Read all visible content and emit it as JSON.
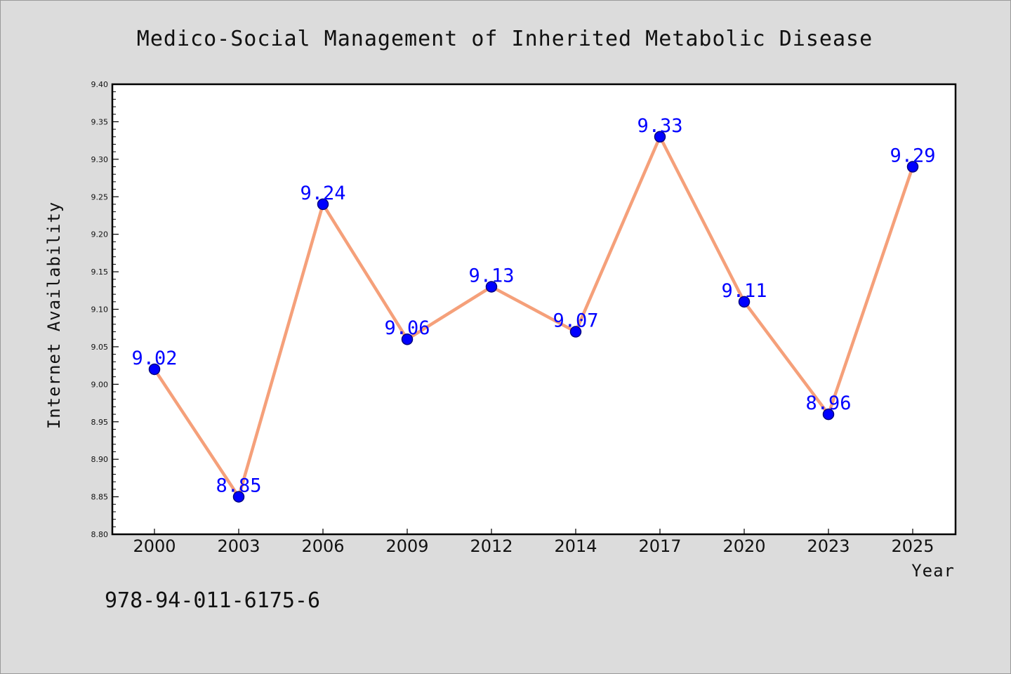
{
  "chart_data": {
    "type": "line",
    "title": "Medico-Social Management of Inherited Metabolic Disease",
    "xlabel": "Year",
    "ylabel": "Internet Availability",
    "categories": [
      "2000",
      "2003",
      "2006",
      "2009",
      "2012",
      "2014",
      "2017",
      "2020",
      "2023",
      "2025"
    ],
    "series": [
      {
        "values": [
          9.02,
          8.85,
          9.24,
          9.06,
          9.13,
          9.07,
          9.33,
          9.11,
          8.96,
          9.29
        ]
      }
    ],
    "data_labels": [
      "9.02",
      "8.85",
      "9.24",
      "9.06",
      "9.13",
      "9.07",
      "9.33",
      "9.11",
      "8.96",
      "9.29"
    ],
    "ylim": [
      8.8,
      9.4
    ],
    "yticks": [
      "8.80",
      "8.85",
      "8.90",
      "8.95",
      "9.00",
      "9.05",
      "9.10",
      "9.15",
      "9.20",
      "9.25",
      "9.30",
      "9.35",
      "9.40"
    ],
    "grid": false,
    "legend": "none",
    "colors": {
      "line": "#f5a07a",
      "marker": "#0000ff",
      "marker_edge": "#000080",
      "data_label": "#0000ff",
      "plot_background": "#ffffff",
      "figure_background": "#dcdcdc"
    }
  },
  "footer": {
    "text": "978-94-011-6175-6"
  }
}
